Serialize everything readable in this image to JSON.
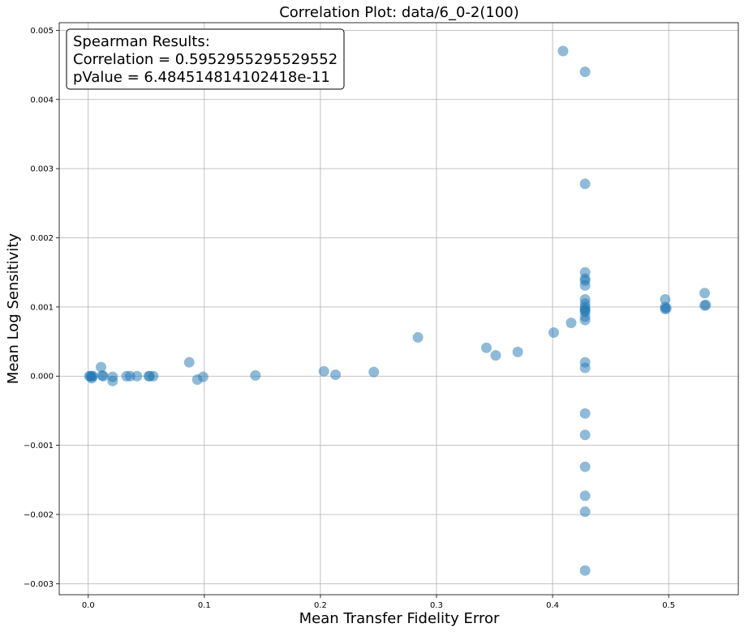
{
  "chart_data": {
    "type": "scatter",
    "title": "Correlation Plot: data/6_0-2(100)",
    "xlabel": "Mean Transfer Fidelity Error",
    "ylabel": "Mean Log Sensitivity",
    "xlim": [
      -0.025,
      0.56
    ],
    "ylim": [
      -0.00316,
      0.00511
    ],
    "xticks": [
      0.0,
      0.1,
      0.2,
      0.3,
      0.4,
      0.5
    ],
    "xtick_labels": [
      "0.0",
      "0.1",
      "0.2",
      "0.3",
      "0.4",
      "0.5"
    ],
    "yticks": [
      -0.003,
      -0.002,
      -0.001,
      0.0,
      0.001,
      0.002,
      0.003,
      0.004,
      0.005
    ],
    "ytick_labels": [
      "−0.003",
      "−0.002",
      "−0.001",
      "0.000",
      "0.001",
      "0.002",
      "0.003",
      "0.004",
      "0.005"
    ],
    "grid": true,
    "marker_color": "#1f77b4",
    "annotation": {
      "lines": [
        "Spearman Results:",
        "Correlation = 0.5952955295529552",
        "pValue = 6.484514814102418e-11"
      ],
      "placement": "top-left"
    },
    "x": [
      0.001,
      0.002,
      0.003,
      0.004,
      0.003,
      0.011,
      0.012,
      0.013,
      0.021,
      0.021,
      0.033,
      0.036,
      0.042,
      0.052,
      0.053,
      0.056,
      0.087,
      0.094,
      0.099,
      0.144,
      0.203,
      0.213,
      0.246,
      0.284,
      0.343,
      0.351,
      0.37,
      0.401,
      0.416,
      0.409,
      0.428,
      0.428,
      0.428,
      0.428,
      0.428,
      0.428,
      0.428,
      0.428,
      0.428,
      0.428,
      0.428,
      0.428,
      0.428,
      0.428,
      0.428,
      0.428,
      0.428,
      0.428,
      0.428,
      0.428,
      0.428,
      0.428,
      0.497,
      0.497,
      0.497,
      0.498,
      0.531,
      0.532,
      0.531
    ],
    "y": [
      0.0,
      0.0,
      -3e-05,
      0.0,
      0.0,
      0.00013,
      1e-05,
      0.0,
      -1e-05,
      -7e-05,
      0.0,
      0.0,
      0.0,
      0.0,
      0.0,
      0.0,
      0.0002,
      -5e-05,
      -1e-05,
      1e-05,
      7e-05,
      2e-05,
      6e-05,
      0.00056,
      0.00041,
      0.0003,
      0.00035,
      0.00063,
      0.00077,
      0.0047,
      0.0044,
      0.00278,
      0.0015,
      0.00141,
      0.00138,
      0.00131,
      0.00111,
      0.00105,
      0.001,
      0.00097,
      0.00095,
      0.00093,
      0.00086,
      0.00081,
      0.0002,
      0.00012,
      -0.00054,
      -0.00085,
      -0.00131,
      -0.00173,
      -0.00196,
      -0.00281,
      0.00111,
      0.001,
      0.00097,
      0.00098,
      0.0012,
      0.00103,
      0.00102
    ]
  }
}
